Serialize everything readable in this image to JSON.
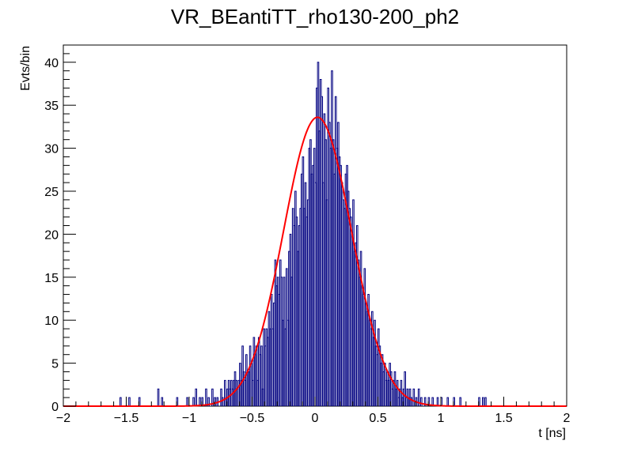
{
  "chart_data": {
    "type": "histogram",
    "title": "VR_BEantiTT_rho130-200_ph2",
    "xlabel": "t [ns]",
    "ylabel": "Evts/bin",
    "xlim": [
      -2,
      2
    ],
    "ylim": [
      0,
      42
    ],
    "x_ticks": [
      -2,
      -1.5,
      -1,
      -0.5,
      0,
      0.5,
      1,
      1.5,
      2
    ],
    "x_tick_labels": [
      "−2",
      "−1.5",
      "−1",
      "−0.5",
      "0",
      "0.5",
      "1",
      "1.5",
      "2"
    ],
    "y_ticks": [
      0,
      5,
      10,
      15,
      20,
      25,
      30,
      35,
      40
    ],
    "y_tick_labels": [
      "0",
      "5",
      "10",
      "15",
      "20",
      "25",
      "30",
      "35",
      "40"
    ],
    "bin_width": 0.01,
    "histogram": {
      "color": "#000080",
      "bins": [
        [
          -1.55,
          1
        ],
        [
          -1.48,
          1
        ],
        [
          -1.4,
          1
        ],
        [
          -1.25,
          2
        ],
        [
          -1.22,
          1
        ],
        [
          -1.1,
          1
        ],
        [
          -1.02,
          1
        ],
        [
          -0.97,
          1
        ],
        [
          -0.95,
          2
        ],
        [
          -0.92,
          1
        ],
        [
          -0.9,
          1
        ],
        [
          -0.87,
          2
        ],
        [
          -0.85,
          1
        ],
        [
          -0.82,
          2
        ],
        [
          -0.8,
          1
        ],
        [
          -0.78,
          1
        ],
        [
          -0.75,
          2
        ],
        [
          -0.74,
          1
        ],
        [
          -0.72,
          3
        ],
        [
          -0.71,
          1
        ],
        [
          -0.7,
          2
        ],
        [
          -0.69,
          3
        ],
        [
          -0.68,
          2
        ],
        [
          -0.67,
          3
        ],
        [
          -0.66,
          2
        ],
        [
          -0.65,
          3
        ],
        [
          -0.64,
          4
        ],
        [
          -0.63,
          3
        ],
        [
          -0.62,
          2
        ],
        [
          -0.61,
          3
        ],
        [
          -0.6,
          5
        ],
        [
          -0.59,
          3
        ],
        [
          -0.58,
          7
        ],
        [
          -0.57,
          4
        ],
        [
          -0.56,
          3
        ],
        [
          -0.55,
          6
        ],
        [
          -0.54,
          4
        ],
        [
          -0.53,
          4
        ],
        [
          -0.52,
          7
        ],
        [
          -0.51,
          5
        ],
        [
          -0.5,
          3
        ],
        [
          -0.49,
          8
        ],
        [
          -0.48,
          6
        ],
        [
          -0.47,
          7
        ],
        [
          -0.46,
          3
        ],
        [
          -0.45,
          8
        ],
        [
          -0.44,
          6
        ],
        [
          -0.43,
          7
        ],
        [
          -0.42,
          2
        ],
        [
          -0.41,
          9
        ],
        [
          -0.4,
          7
        ],
        [
          -0.39,
          9
        ],
        [
          -0.38,
          8
        ],
        [
          -0.37,
          11
        ],
        [
          -0.36,
          9
        ],
        [
          -0.35,
          13
        ],
        [
          -0.34,
          9
        ],
        [
          -0.33,
          12
        ],
        [
          -0.32,
          17
        ],
        [
          -0.31,
          14
        ],
        [
          -0.3,
          15
        ],
        [
          -0.29,
          13
        ],
        [
          -0.28,
          17
        ],
        [
          -0.27,
          15
        ],
        [
          -0.26,
          10
        ],
        [
          -0.25,
          15
        ],
        [
          -0.24,
          9
        ],
        [
          -0.23,
          16
        ],
        [
          -0.22,
          10
        ],
        [
          -0.21,
          18
        ],
        [
          -0.2,
          20
        ],
        [
          -0.19,
          15
        ],
        [
          -0.18,
          23
        ],
        [
          -0.17,
          21
        ],
        [
          -0.16,
          25
        ],
        [
          -0.15,
          22
        ],
        [
          -0.14,
          18
        ],
        [
          -0.13,
          21
        ],
        [
          -0.12,
          23
        ],
        [
          -0.11,
          27
        ],
        [
          -0.1,
          29
        ],
        [
          -0.09,
          23
        ],
        [
          -0.08,
          26
        ],
        [
          -0.07,
          22
        ],
        [
          -0.06,
          24
        ],
        [
          -0.05,
          30
        ],
        [
          -0.04,
          31
        ],
        [
          -0.03,
          27
        ],
        [
          -0.02,
          28
        ],
        [
          -0.01,
          30
        ],
        [
          0.0,
          26
        ],
        [
          0.01,
          37
        ],
        [
          0.02,
          40
        ],
        [
          0.03,
          32
        ],
        [
          0.04,
          38
        ],
        [
          0.05,
          36
        ],
        [
          0.06,
          26
        ],
        [
          0.07,
          34
        ],
        [
          0.08,
          31
        ],
        [
          0.09,
          24
        ],
        [
          0.1,
          37
        ],
        [
          0.11,
          33
        ],
        [
          0.12,
          30
        ],
        [
          0.13,
          39
        ],
        [
          0.14,
          31
        ],
        [
          0.15,
          27
        ],
        [
          0.16,
          36
        ],
        [
          0.17,
          30
        ],
        [
          0.18,
          33
        ],
        [
          0.19,
          29
        ],
        [
          0.2,
          28
        ],
        [
          0.21,
          26
        ],
        [
          0.22,
          24
        ],
        [
          0.23,
          23
        ],
        [
          0.24,
          27
        ],
        [
          0.25,
          28
        ],
        [
          0.26,
          25
        ],
        [
          0.27,
          23
        ],
        [
          0.28,
          22
        ],
        [
          0.29,
          20
        ],
        [
          0.3,
          24
        ],
        [
          0.31,
          18
        ],
        [
          0.32,
          19
        ],
        [
          0.33,
          21
        ],
        [
          0.34,
          17
        ],
        [
          0.35,
          15
        ],
        [
          0.36,
          18
        ],
        [
          0.37,
          14
        ],
        [
          0.38,
          13
        ],
        [
          0.39,
          16
        ],
        [
          0.4,
          12
        ],
        [
          0.41,
          11
        ],
        [
          0.42,
          13
        ],
        [
          0.43,
          10
        ],
        [
          0.44,
          9
        ],
        [
          0.45,
          11
        ],
        [
          0.46,
          8
        ],
        [
          0.47,
          10
        ],
        [
          0.48,
          7
        ],
        [
          0.49,
          6
        ],
        [
          0.5,
          9
        ],
        [
          0.51,
          7
        ],
        [
          0.52,
          5
        ],
        [
          0.53,
          6
        ],
        [
          0.54,
          4
        ],
        [
          0.55,
          5
        ],
        [
          0.56,
          3
        ],
        [
          0.57,
          4
        ],
        [
          0.58,
          3
        ],
        [
          0.59,
          5
        ],
        [
          0.6,
          4
        ],
        [
          0.61,
          2
        ],
        [
          0.62,
          3
        ],
        [
          0.63,
          4
        ],
        [
          0.64,
          2
        ],
        [
          0.65,
          3
        ],
        [
          0.66,
          1
        ],
        [
          0.67,
          2
        ],
        [
          0.68,
          3
        ],
        [
          0.69,
          1
        ],
        [
          0.7,
          2
        ],
        [
          0.71,
          4
        ],
        [
          0.72,
          1
        ],
        [
          0.73,
          2
        ],
        [
          0.74,
          1
        ],
        [
          0.75,
          2
        ],
        [
          0.76,
          1
        ],
        [
          0.78,
          2
        ],
        [
          0.8,
          1
        ],
        [
          0.82,
          2
        ],
        [
          0.84,
          1
        ],
        [
          0.87,
          1
        ],
        [
          0.9,
          1
        ],
        [
          0.93,
          1
        ],
        [
          0.97,
          1
        ],
        [
          1.0,
          1
        ],
        [
          1.05,
          1
        ],
        [
          1.1,
          1
        ],
        [
          1.15,
          1
        ],
        [
          1.3,
          1
        ],
        [
          1.33,
          1
        ],
        [
          1.35,
          1
        ]
      ]
    },
    "fit": {
      "type": "gaussian",
      "color": "#ff0000",
      "amplitude": 33.6,
      "mean": 0.02,
      "sigma": 0.27
    }
  }
}
